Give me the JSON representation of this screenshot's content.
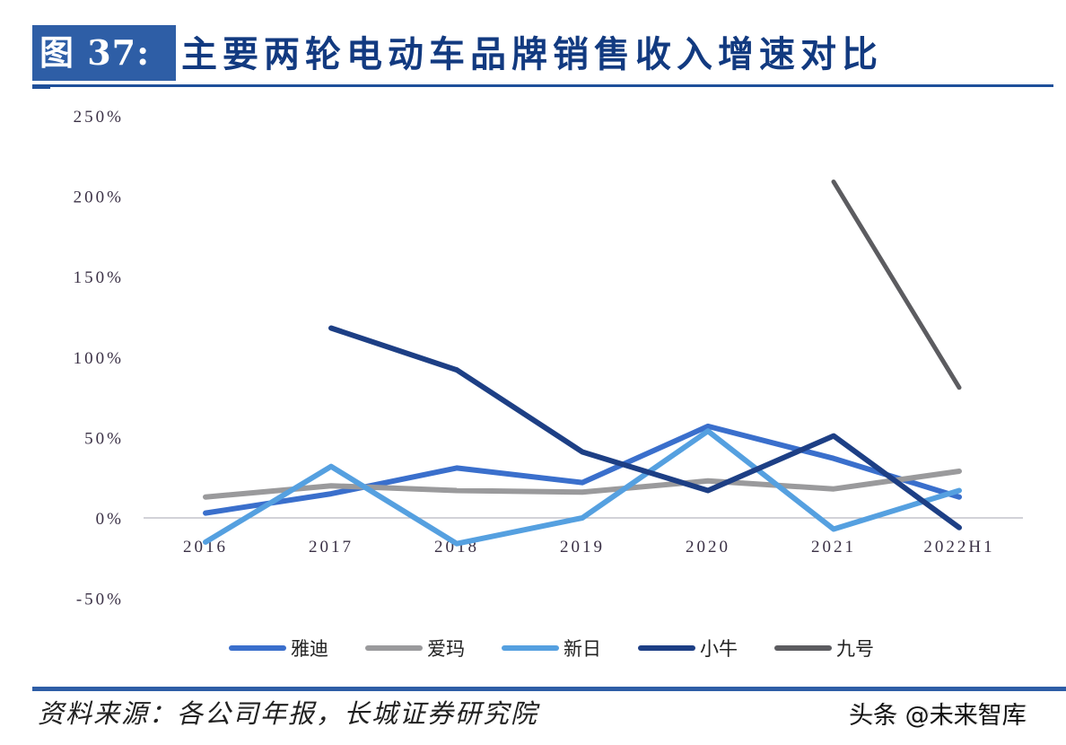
{
  "header": {
    "figure_label": "图 37:",
    "title": "主要两轮电动车品牌销售收入增速对比"
  },
  "footer": {
    "source": "资料来源：各公司年报，长城证券研究院",
    "watermark": "头条 @未来智库"
  },
  "chart_data": {
    "type": "line",
    "title": "主要两轮电动车品牌销售收入增速对比",
    "xlabel": "",
    "ylabel": "",
    "categories": [
      "2016",
      "2017",
      "2018",
      "2019",
      "2020",
      "2021",
      "2022H1"
    ],
    "y_ticks": [
      "250%",
      "200%",
      "150%",
      "100%",
      "50%",
      "0%",
      "-50%"
    ],
    "ylim": [
      -50,
      250
    ],
    "grid": false,
    "legend_position": "bottom",
    "series": [
      {
        "name": "雅迪",
        "color": "#3a6fcc",
        "values": [
          3,
          15,
          31,
          22,
          57,
          37,
          13
        ]
      },
      {
        "name": "爱玛",
        "color": "#9a9a9c",
        "values": [
          13,
          20,
          17,
          16,
          23,
          18,
          29
        ]
      },
      {
        "name": "新日",
        "color": "#55a0e0",
        "values": [
          -15,
          32,
          -16,
          0,
          54,
          -7,
          17
        ]
      },
      {
        "name": "小牛",
        "color": "#1d3f85",
        "values": [
          null,
          118,
          92,
          41,
          17,
          51,
          -6
        ]
      },
      {
        "name": "九号",
        "color": "#5c5c60",
        "values": [
          null,
          null,
          null,
          null,
          null,
          209,
          81
        ]
      }
    ]
  }
}
